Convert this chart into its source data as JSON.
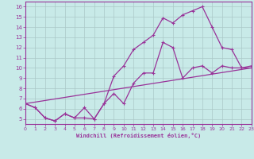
{
  "xlabel": "Windchill (Refroidissement éolien,°C)",
  "bg_color": "#c8eae8",
  "grid_color": "#aac8c8",
  "line_color": "#993399",
  "xlim": [
    0,
    23
  ],
  "ylim": [
    4.5,
    16.5
  ],
  "yticks": [
    5,
    6,
    7,
    8,
    9,
    10,
    11,
    12,
    13,
    14,
    15,
    16
  ],
  "xticks": [
    0,
    1,
    2,
    3,
    4,
    5,
    6,
    7,
    8,
    9,
    10,
    11,
    12,
    13,
    14,
    15,
    16,
    17,
    18,
    19,
    20,
    21,
    22,
    23
  ],
  "line1_x": [
    0,
    1,
    2,
    3,
    4,
    5,
    6,
    7,
    8,
    9,
    10,
    11,
    12,
    13,
    14,
    15,
    16,
    17,
    18,
    19,
    20,
    21,
    22,
    23
  ],
  "line1_y": [
    6.5,
    6.1,
    5.1,
    4.8,
    5.5,
    5.1,
    5.1,
    5.0,
    6.5,
    7.5,
    6.5,
    8.5,
    9.5,
    9.5,
    12.5,
    12.0,
    9.0,
    10.0,
    10.2,
    9.5,
    10.2,
    10.0,
    10.0,
    10.0
  ],
  "line2_x": [
    0,
    1,
    2,
    3,
    4,
    5,
    6,
    7,
    8,
    9,
    10,
    11,
    12,
    13,
    14,
    15,
    16,
    17,
    18,
    19,
    20,
    21,
    22,
    23
  ],
  "line2_y": [
    6.5,
    6.1,
    5.1,
    4.8,
    5.5,
    5.1,
    6.1,
    5.0,
    6.5,
    9.2,
    10.2,
    11.8,
    12.5,
    13.2,
    14.9,
    14.4,
    15.2,
    15.6,
    16.0,
    14.0,
    12.0,
    11.8,
    10.0,
    10.2
  ],
  "line3_x": [
    0,
    23
  ],
  "line3_y": [
    6.5,
    10.0
  ]
}
